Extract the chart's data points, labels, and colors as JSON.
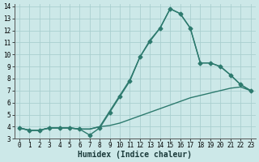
{
  "xlabel": "Humidex (Indice chaleur)",
  "x": [
    0,
    1,
    2,
    3,
    4,
    5,
    6,
    7,
    8,
    9,
    10,
    11,
    12,
    13,
    14,
    15,
    16,
    17,
    18,
    19,
    20,
    21,
    22,
    23
  ],
  "y_main": [
    3.9,
    3.7,
    3.7,
    3.9,
    3.9,
    3.9,
    3.8,
    3.3,
    3.9,
    5.2,
    6.5,
    7.8,
    9.8,
    11.1,
    12.2,
    13.8,
    13.4,
    12.2,
    9.3,
    9.3,
    9.0,
    8.3,
    7.5,
    7.0
  ],
  "y_upper": [
    3.9,
    3.7,
    3.7,
    3.9,
    3.9,
    3.9,
    3.8,
    3.8,
    4.0,
    5.3,
    6.6,
    7.9,
    9.8,
    11.2,
    12.2,
    13.8,
    13.4,
    12.2,
    9.3,
    9.3,
    9.0,
    8.3,
    7.5,
    7.0
  ],
  "y_lower": [
    3.9,
    3.7,
    3.7,
    3.9,
    3.9,
    3.9,
    3.8,
    3.8,
    4.0,
    4.1,
    4.3,
    4.6,
    4.9,
    5.2,
    5.5,
    5.8,
    6.1,
    6.4,
    6.6,
    6.8,
    7.0,
    7.2,
    7.3,
    7.0
  ],
  "bg_color": "#cce8e8",
  "grid_color": "#aacfcf",
  "line_color": "#2d7a6e",
  "markersize": 2.5,
  "linewidth": 1.0,
  "xlim": [
    -0.5,
    23.5
  ],
  "ylim": [
    3,
    14.2
  ],
  "yticks": [
    3,
    4,
    5,
    6,
    7,
    8,
    9,
    10,
    11,
    12,
    13,
    14
  ],
  "xticks": [
    0,
    1,
    2,
    3,
    4,
    5,
    6,
    7,
    8,
    9,
    10,
    11,
    12,
    13,
    14,
    15,
    16,
    17,
    18,
    19,
    20,
    21,
    22,
    23
  ],
  "tick_fontsize": 5.5,
  "xlabel_fontsize": 7.0
}
